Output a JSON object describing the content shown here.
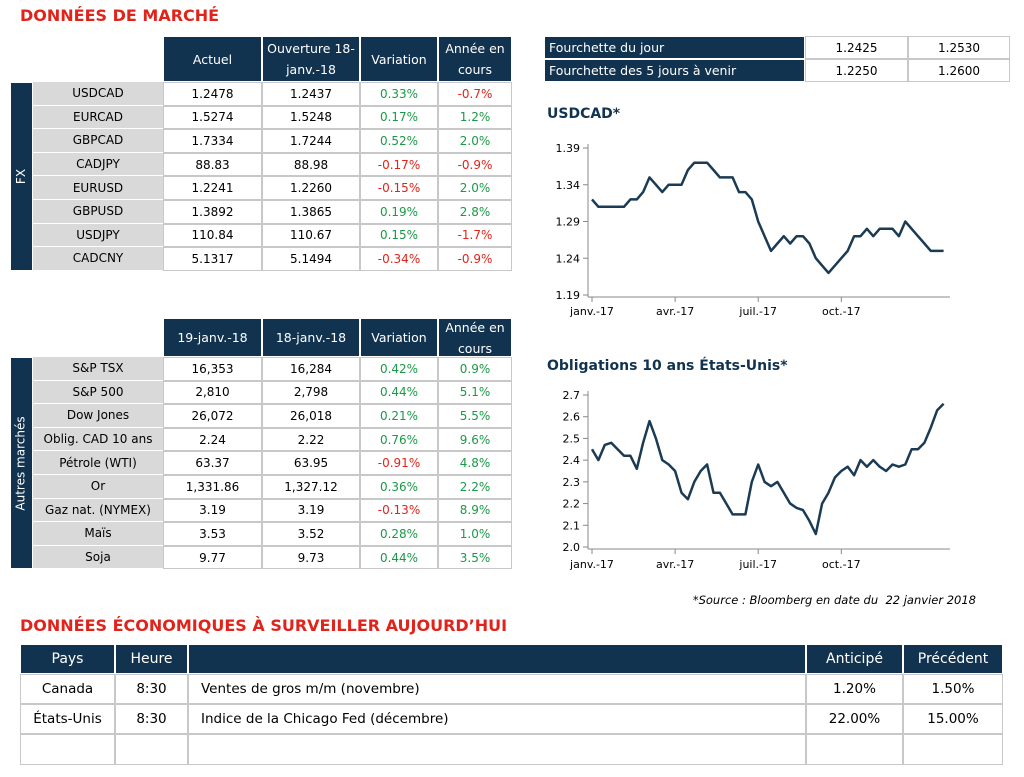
{
  "title": "DONNÉES DE MARCHÉ",
  "fx": {
    "side_label": "FX",
    "columns": [
      "Actuel",
      "Ouverture 18-janv.-18",
      "Variation",
      "Année en cours"
    ],
    "rows": [
      [
        "USDCAD",
        "1.2478",
        "1.2437",
        "0.33%",
        "-0.7%"
      ],
      [
        "EURCAD",
        "1.5274",
        "1.5248",
        "0.17%",
        "1.2%"
      ],
      [
        "GBPCAD",
        "1.7334",
        "1.7244",
        "0.52%",
        "2.0%"
      ],
      [
        "CADJPY",
        "88.83",
        "88.98",
        "-0.17%",
        "-0.9%"
      ],
      [
        "EURUSD",
        "1.2241",
        "1.2260",
        "-0.15%",
        "2.0%"
      ],
      [
        "GBPUSD",
        "1.3892",
        "1.3865",
        "0.19%",
        "2.8%"
      ],
      [
        "USDJPY",
        "110.84",
        "110.67",
        "0.15%",
        "-1.7%"
      ],
      [
        "CADCNY",
        "5.1317",
        "5.1494",
        "-0.34%",
        "-0.9%"
      ]
    ]
  },
  "other": {
    "side_label": "Autres marchés",
    "columns": [
      "19-janv.-18",
      "18-janv.-18",
      "Variation",
      "Année en cours"
    ],
    "rows": [
      [
        "S&P TSX",
        "16,353",
        "16,284",
        "0.42%",
        "0.9%"
      ],
      [
        "S&P 500",
        "2,810",
        "2,798",
        "0.44%",
        "5.1%"
      ],
      [
        "Dow Jones",
        "26,072",
        "26,018",
        "0.21%",
        "5.5%"
      ],
      [
        "Oblig. CAD 10 ans",
        "2.24",
        "2.22",
        "0.76%",
        "9.6%"
      ],
      [
        "Pétrole (WTI)",
        "63.37",
        "63.95",
        "-0.91%",
        "4.8%"
      ],
      [
        "Or",
        "1,331.86",
        "1,327.12",
        "0.36%",
        "2.2%"
      ],
      [
        "Gaz nat. (NYMEX)",
        "3.19",
        "3.19",
        "-0.13%",
        "8.9%"
      ],
      [
        "Maïs",
        "3.53",
        "3.52",
        "0.28%",
        "1.0%"
      ],
      [
        "Soja",
        "9.77",
        "9.73",
        "0.44%",
        "3.5%"
      ]
    ]
  },
  "ranges": {
    "rows": [
      [
        "Fourchette du jour",
        "1.2425",
        "1.2530"
      ],
      [
        "Fourchette des 5 jours à venir",
        "1.2250",
        "1.2600"
      ]
    ]
  },
  "charts": [
    {
      "type": "line",
      "title": "USDCAD*",
      "color": "#1b3b55",
      "values": [
        1.32,
        1.31,
        1.31,
        1.31,
        1.31,
        1.31,
        1.32,
        1.32,
        1.33,
        1.35,
        1.34,
        1.33,
        1.34,
        1.34,
        1.34,
        1.36,
        1.37,
        1.37,
        1.37,
        1.36,
        1.35,
        1.35,
        1.35,
        1.33,
        1.33,
        1.32,
        1.29,
        1.27,
        1.25,
        1.26,
        1.27,
        1.26,
        1.27,
        1.27,
        1.26,
        1.24,
        1.23,
        1.22,
        1.23,
        1.24,
        1.25,
        1.27,
        1.27,
        1.28,
        1.27,
        1.28,
        1.28,
        1.28,
        1.27,
        1.29,
        1.28,
        1.27,
        1.26,
        1.25,
        1.25,
        1.25
      ],
      "xlim": [
        0,
        56
      ],
      "xticks": [
        {
          "value": 0,
          "label": "janv.-17"
        },
        {
          "value": 13,
          "label": "avr.-17"
        },
        {
          "value": 26,
          "label": "juil.-17"
        },
        {
          "value": 39,
          "label": "oct.-17"
        }
      ],
      "ylim": [
        1.19,
        1.39
      ],
      "yticks": [
        1.39,
        1.34,
        1.29,
        1.24,
        1.19
      ]
    },
    {
      "type": "line",
      "title": "Obligations 10 ans États-Unis*",
      "color": "#1b3b55",
      "values": [
        2.45,
        2.4,
        2.47,
        2.48,
        2.45,
        2.42,
        2.42,
        2.36,
        2.48,
        2.58,
        2.5,
        2.4,
        2.38,
        2.35,
        2.25,
        2.22,
        2.3,
        2.35,
        2.38,
        2.25,
        2.25,
        2.2,
        2.15,
        2.15,
        2.15,
        2.3,
        2.38,
        2.3,
        2.28,
        2.3,
        2.25,
        2.2,
        2.18,
        2.17,
        2.12,
        2.06,
        2.2,
        2.25,
        2.32,
        2.35,
        2.37,
        2.33,
        2.4,
        2.37,
        2.4,
        2.37,
        2.35,
        2.38,
        2.37,
        2.38,
        2.45,
        2.45,
        2.48,
        2.55,
        2.63,
        2.66
      ],
      "xlim": [
        0,
        56
      ],
      "xticks": [
        {
          "value": 0,
          "label": "janv.-17"
        },
        {
          "value": 13,
          "label": "avr.-17"
        },
        {
          "value": 26,
          "label": "juil.-17"
        },
        {
          "value": 39,
          "label": "oct.-17"
        }
      ],
      "ylim": [
        2.0,
        2.7
      ],
      "yticks": [
        2.7,
        2.6,
        2.5,
        2.4,
        2.3,
        2.2,
        2.1,
        {
          "value": 2.0,
          "label": "2.0"
        }
      ]
    }
  ],
  "source_note": "*Source : Bloomberg en date du  22 janvier 2018",
  "econ": {
    "title": "DONNÉES ÉCONOMIQUES À SURVEILLER AUJOURD’HUI",
    "columns": [
      "Pays",
      "Heure",
      "Anticipé",
      "Précédent"
    ],
    "rows": [
      [
        "Canada",
        "8:30",
        "Ventes de gros m/m (novembre)",
        "1.20%",
        "1.50%"
      ],
      [
        "États-Unis",
        "8:30",
        "Indice de la Chicago Fed (décembre)",
        "22.00%",
        "15.00%"
      ]
    ]
  }
}
